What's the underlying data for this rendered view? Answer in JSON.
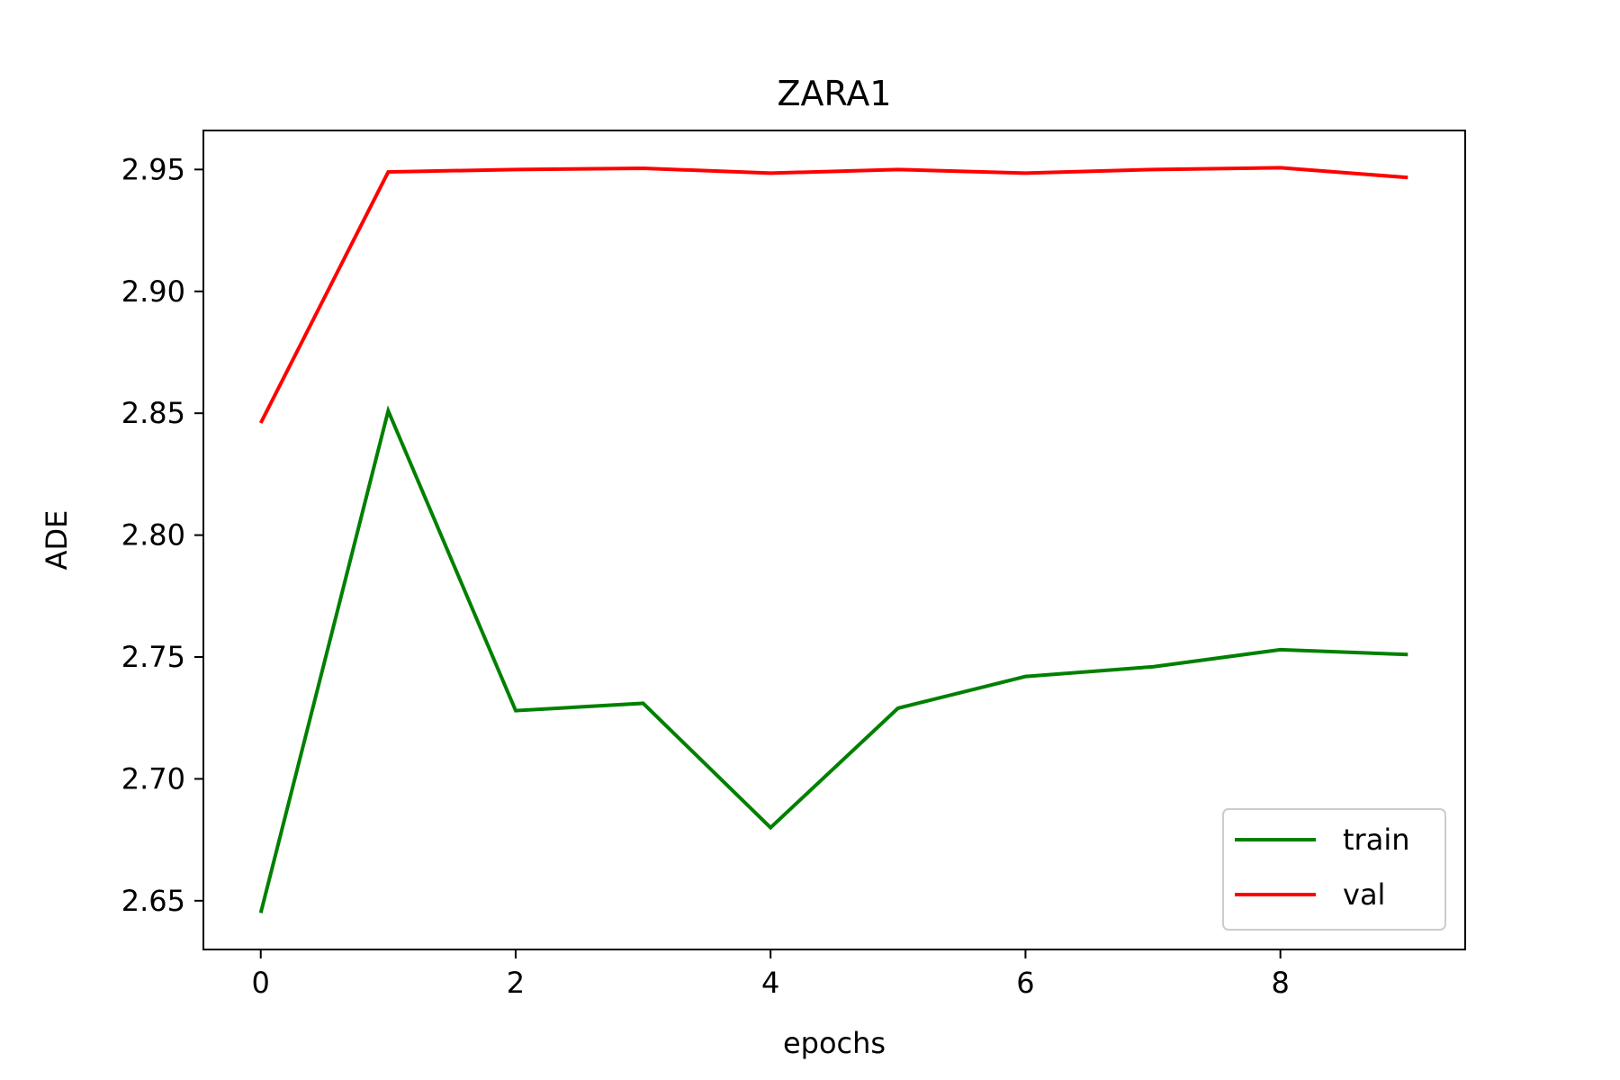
{
  "chart_data": {
    "type": "line",
    "title": "ZARA1",
    "xlabel": "epochs",
    "ylabel": "ADE",
    "x": [
      0,
      1,
      2,
      3,
      4,
      5,
      6,
      7,
      8,
      9
    ],
    "xlim": [
      -0.45,
      9.45
    ],
    "ylim": [
      2.63,
      2.966
    ],
    "xticks": [
      0,
      2,
      4,
      6,
      8
    ],
    "xtick_labels": [
      "0",
      "2",
      "4",
      "6",
      "8"
    ],
    "yticks": [
      2.65,
      2.7,
      2.75,
      2.8,
      2.85,
      2.9,
      2.95
    ],
    "ytick_labels": [
      "2.65",
      "2.70",
      "2.75",
      "2.80",
      "2.85",
      "2.90",
      "2.95"
    ],
    "grid": false,
    "legend_position": "lower-right",
    "series": [
      {
        "name": "train",
        "color": "#008000",
        "values": [
          2.645,
          2.851,
          2.728,
          2.731,
          2.68,
          2.729,
          2.742,
          2.746,
          2.753,
          2.751
        ]
      },
      {
        "name": "val",
        "color": "#ff0000",
        "values": [
          2.846,
          2.949,
          2.95,
          2.9505,
          2.9485,
          2.95,
          2.9485,
          2.95,
          2.9507,
          2.9467
        ]
      }
    ]
  }
}
